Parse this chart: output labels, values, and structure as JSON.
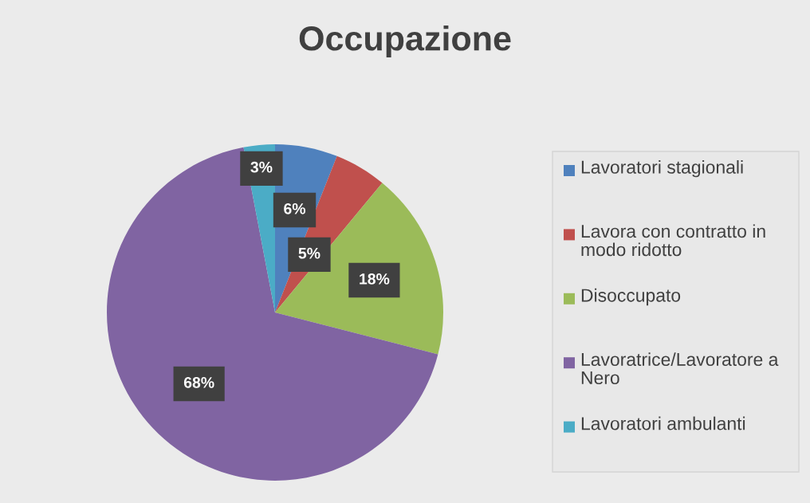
{
  "chart_data": {
    "type": "pie",
    "title": "Occupazione",
    "categories": [
      "Lavoratori stagionali",
      "Lavora con contratto in modo ridotto",
      "Disoccupato",
      "Lavoratrice/Lavoratore a Nero",
      "Lavoratori ambulanti"
    ],
    "values": [
      6,
      5,
      18,
      68,
      3
    ],
    "colors": [
      "#4f81bd",
      "#c0504d",
      "#9bbb59",
      "#8064a2",
      "#4bacc6"
    ],
    "value_labels": [
      "6%",
      "5%",
      "18%",
      "68%",
      "3%"
    ],
    "legend": "right"
  }
}
